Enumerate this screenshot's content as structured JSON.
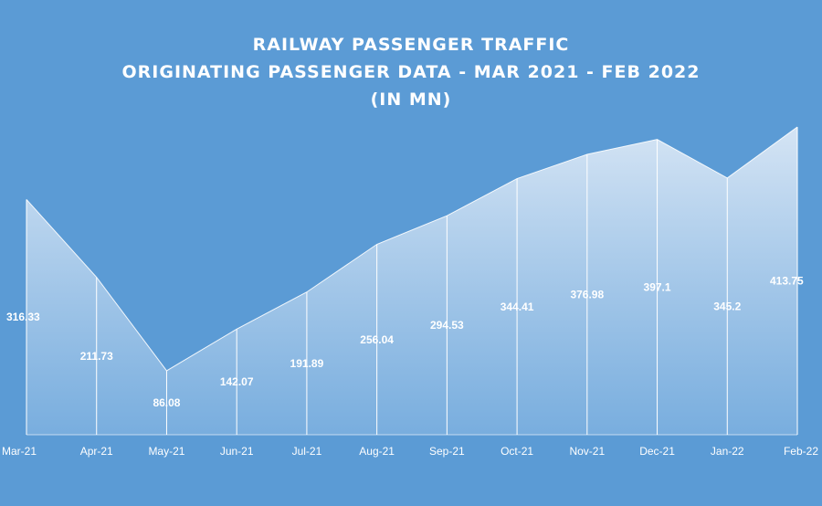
{
  "chart_data": {
    "type": "area",
    "title_lines": [
      "RAILWAY  PASSENGER  TRAFFIC",
      "ORIGINATING  PASSENGER  DATA - MAR 2021 - FEB 2022",
      "(IN  MN)"
    ],
    "categories": [
      "Mar-21",
      "Apr-21",
      "May-21",
      "Jun-21",
      "Jul-21",
      "Aug-21",
      "Sep-21",
      "Oct-21",
      "Nov-21",
      "Dec-21",
      "Jan-22",
      "Feb-22"
    ],
    "series": [
      {
        "values": [
          316.33,
          211.73,
          86.08,
          142.07,
          191.89,
          256.04,
          294.53,
          344.41,
          376.98,
          397.1,
          345.2,
          413.75
        ],
        "labels": [
          "316.33",
          "211.73",
          "86.08",
          "142.07",
          "191.89",
          "256.04",
          "294.53",
          "344.41",
          "376.98",
          "397.1",
          "345.2",
          "413.75"
        ]
      }
    ],
    "ylim": [
      0,
      420
    ],
    "grid": false,
    "legend": "none",
    "colors": {
      "background": "#5b9bd5",
      "area_top": "#dbe8f6",
      "area_bottom": "#7eb1e0",
      "line": "#ffffff",
      "text": "#ffffff"
    }
  }
}
